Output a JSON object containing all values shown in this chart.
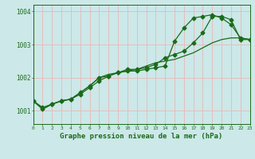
{
  "xlabel": "Graphe pression niveau de la mer (hPa)",
  "xlim": [
    0,
    23
  ],
  "ylim": [
    1000.6,
    1004.2
  ],
  "yticks": [
    1001,
    1002,
    1003,
    1004
  ],
  "xticks": [
    0,
    1,
    2,
    3,
    4,
    5,
    6,
    7,
    8,
    9,
    10,
    11,
    12,
    13,
    14,
    15,
    16,
    17,
    18,
    19,
    20,
    21,
    22,
    23
  ],
  "bg_color": "#cce8e8",
  "grid_color": "#e8b8b8",
  "line_color": "#1a6b1a",
  "line1": [
    1001.3,
    1001.1,
    1001.2,
    1001.3,
    1001.35,
    1001.5,
    1001.7,
    1001.9,
    1002.05,
    1002.15,
    1002.2,
    1002.2,
    1002.25,
    1002.3,
    1002.35,
    1003.1,
    1003.5,
    1003.8,
    1003.85,
    1003.9,
    1003.8,
    1003.6,
    1003.2,
    1003.15
  ],
  "line2": [
    1001.3,
    1001.05,
    1001.2,
    1001.3,
    1001.35,
    1001.55,
    1001.75,
    1002.0,
    1002.05,
    1002.15,
    1002.25,
    1002.25,
    1002.3,
    1002.4,
    1002.6,
    1002.7,
    1002.8,
    1003.05,
    1003.35,
    1003.85,
    1003.85,
    1003.75,
    1003.15,
    1003.15
  ],
  "line3": [
    1001.3,
    1001.05,
    1001.2,
    1001.3,
    1001.35,
    1001.55,
    1001.75,
    1002.0,
    1002.1,
    1002.15,
    1002.2,
    1002.25,
    1002.35,
    1002.45,
    1002.5,
    1002.55,
    1002.65,
    1002.75,
    1002.9,
    1003.05,
    1003.15,
    1003.2,
    1003.2,
    1003.15
  ],
  "markersize": 2.5,
  "linewidth": 0.9
}
